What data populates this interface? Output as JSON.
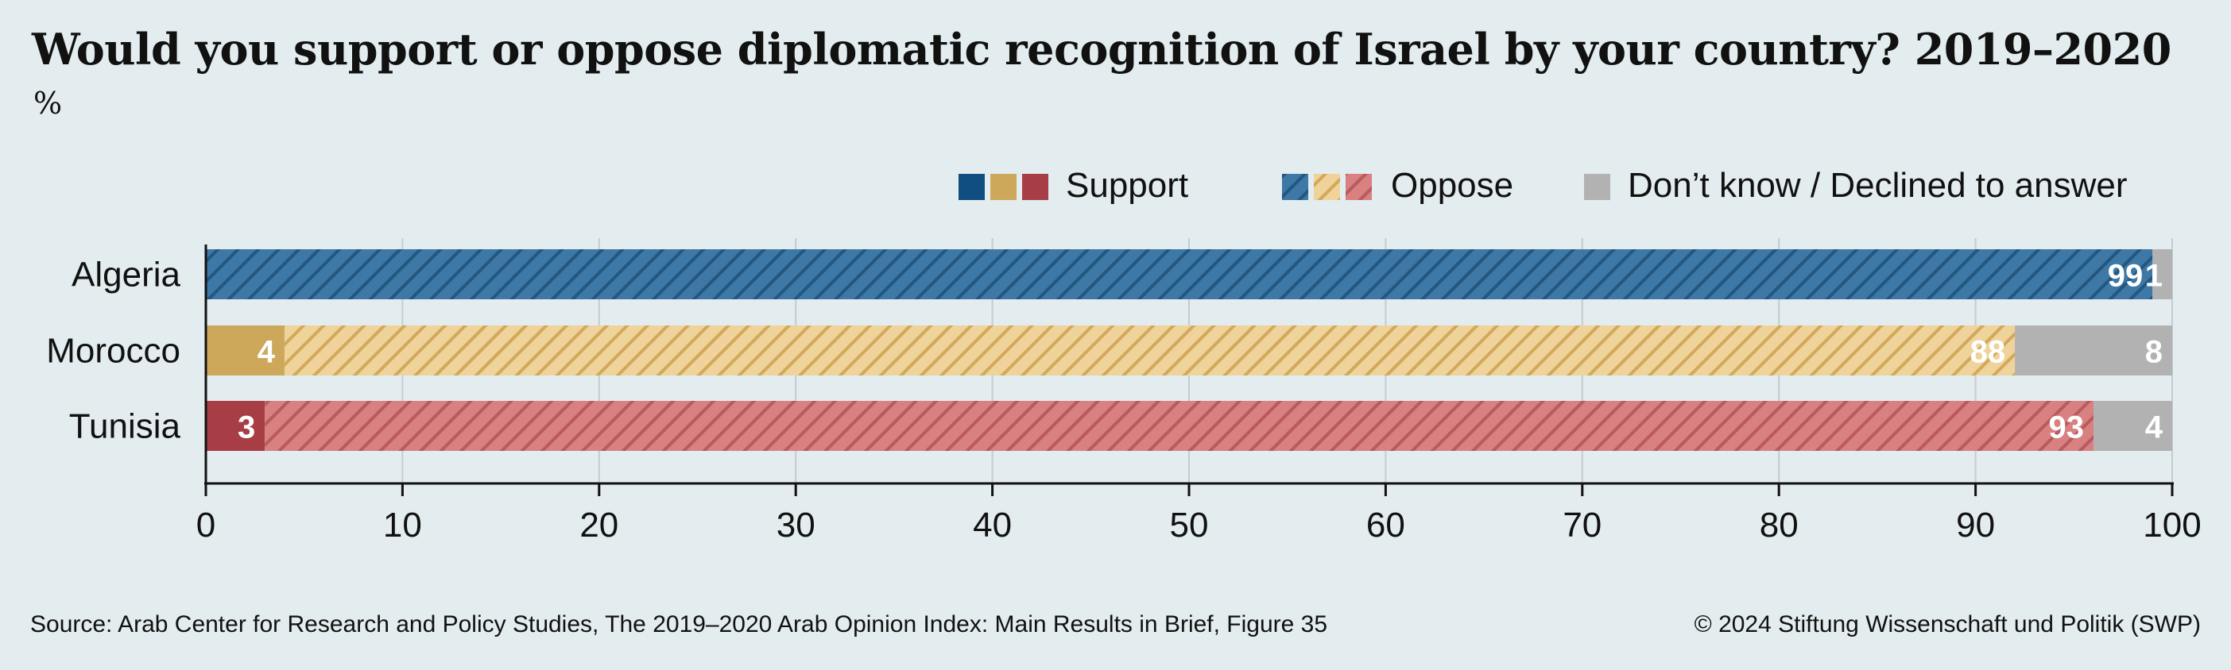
{
  "title": "Would you support or oppose diplomatic recognition of Israel by your country? 2019–2020",
  "unit": "%",
  "source": "Source: Arab Center for Research and Policy Studies, The 2019–2020 Arab Opinion Index: Main Results in Brief, Figure 35",
  "copyright": "© 2024 Stiftung Wissenschaft und Politik (SWP)",
  "legend": {
    "support": "Support",
    "oppose": "Oppose",
    "dont_know": "Don’t know / Declined to answer"
  },
  "colors": {
    "background": "#e3ecee",
    "algeria": "#3d78a6",
    "algeria_stripe": "#24577f",
    "morocco": "#efd39b",
    "morocco_solid": "#cda85a",
    "morocco_stripe": "#d2a95a",
    "tunisia": "#d98080",
    "tunisia_solid": "#a83e45",
    "tunisia_stripe": "#b85a5f",
    "dont_know": "#b2b2b2",
    "legend_blue": "#104d80"
  },
  "chart_data": {
    "type": "bar",
    "orientation": "horizontal",
    "stacked": true,
    "categories": [
      "Algeria",
      "Morocco",
      "Tunisia"
    ],
    "series": [
      {
        "name": "Support",
        "values": [
          0,
          4,
          3
        ]
      },
      {
        "name": "Oppose",
        "values": [
          99,
          88,
          93
        ]
      },
      {
        "name": "Don’t know / Declined to answer",
        "values": [
          1,
          8,
          4
        ]
      }
    ],
    "xlim": [
      0,
      100
    ],
    "xticks": [
      0,
      10,
      20,
      30,
      40,
      50,
      60,
      70,
      80,
      90,
      100
    ],
    "grid": true,
    "legend_position": "top-right"
  }
}
